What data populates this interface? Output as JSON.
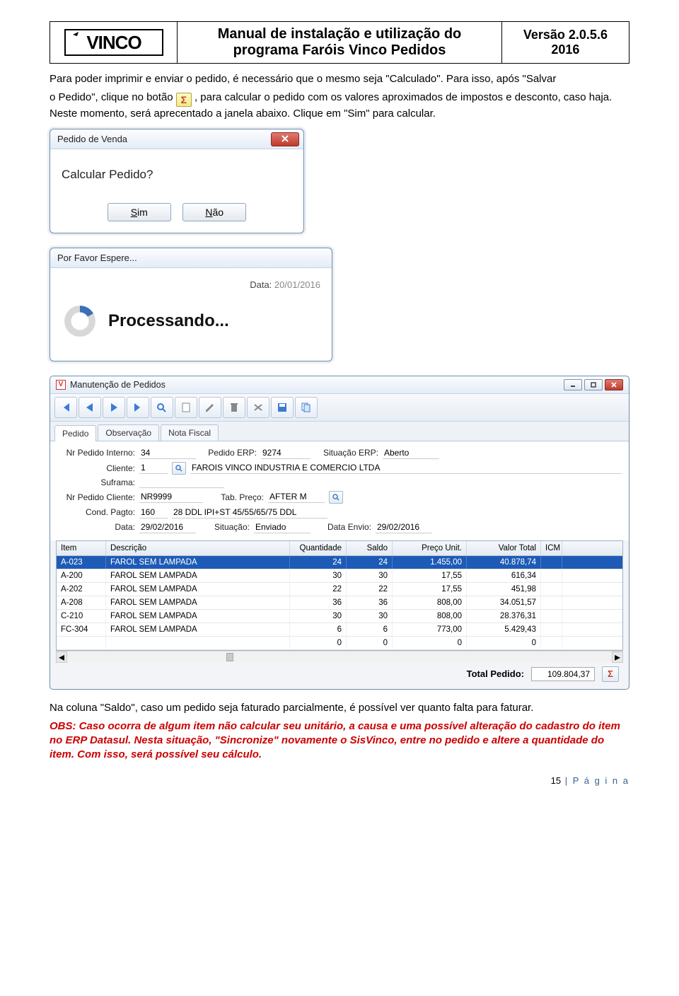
{
  "header": {
    "logo": "VINCO",
    "title_line1": "Manual de instalação e utilização do",
    "title_line2": "programa Faróis Vinco Pedidos",
    "version_line1": "Versão 2.0.5.6",
    "version_line2": "2016"
  },
  "para1": "Para poder imprimir e enviar o pedido, é necessário que o mesmo seja \"Calculado\". Para isso, após \"Salvar",
  "para2_prefix": "o Pedido\", clique no botão ",
  "para2_suffix": ", para calcular o pedido com os valores aproximados de impostos e desconto, caso haja. Neste momento, será aprecentado a janela abaixo. Clique em \"Sim\" para calcular.",
  "dlg1": {
    "title": "Pedido de Venda",
    "question": "Calcular Pedido?",
    "yes_u": "S",
    "yes_rest": "im",
    "no_u": "N",
    "no_rest": "ão"
  },
  "dlg2": {
    "title": "Por Favor Espere...",
    "data_label": "Data:",
    "data_value": "20/01/2016",
    "processing": "Processando..."
  },
  "app": {
    "title": "Manutenção de Pedidos",
    "tabs": [
      "Pedido",
      "Observação",
      "Nota Fiscal"
    ],
    "fields": {
      "nr_int_label": "Nr Pedido Interno:",
      "nr_int": "34",
      "erp_label": "Pedido ERP:",
      "erp": "9274",
      "sit_erp_label": "Situação ERP:",
      "sit_erp": "Aberto",
      "cliente_label": "Cliente:",
      "cliente_cod": "1",
      "cliente_nome": "FAROIS VINCO INDUSTRIA E COMERCIO LTDA",
      "suframa_label": "Suframa:",
      "nr_cli_label": "Nr Pedido Cliente:",
      "nr_cli": "NR9999",
      "tab_preco_label": "Tab. Preço:",
      "tab_preco": "AFTER M",
      "cond_label": "Cond. Pagto:",
      "cond_cod": "160",
      "cond_desc": "28 DDL IPI+ST 45/55/65/75 DDL",
      "data_label": "Data:",
      "data": "29/02/2016",
      "sit_label": "Situação:",
      "sit": "Enviado",
      "env_label": "Data Envio:",
      "env": "29/02/2016"
    },
    "grid": {
      "cols": [
        "Item",
        "Descrição",
        "Quantidade",
        "Saldo",
        "Preço Unit.",
        "Valor Total",
        "ICM"
      ],
      "rows": [
        {
          "item": "A-023",
          "desc": "FAROL SEM LAMPADA",
          "q": "24",
          "s": "24",
          "pu": "1.455,00",
          "vt": "40.878,74",
          "sel": true
        },
        {
          "item": "A-200",
          "desc": "FAROL SEM LAMPADA",
          "q": "30",
          "s": "30",
          "pu": "17,55",
          "vt": "616,34"
        },
        {
          "item": "A-202",
          "desc": "FAROL SEM LAMPADA",
          "q": "22",
          "s": "22",
          "pu": "17,55",
          "vt": "451,98"
        },
        {
          "item": "A-208",
          "desc": "FAROL SEM LAMPADA",
          "q": "36",
          "s": "36",
          "pu": "808,00",
          "vt": "34.051,57"
        },
        {
          "item": "C-210",
          "desc": "FAROL SEM LAMPADA",
          "q": "30",
          "s": "30",
          "pu": "808,00",
          "vt": "28.376,31"
        },
        {
          "item": "FC-304",
          "desc": "FAROL SEM LAMPADA",
          "q": "6",
          "s": "6",
          "pu": "773,00",
          "vt": "5.429,43"
        },
        {
          "item": "",
          "desc": "",
          "q": "0",
          "s": "0",
          "pu": "0",
          "vt": "0"
        }
      ]
    },
    "total_label": "Total Pedido:",
    "total_value": "109.804,37"
  },
  "para3": "Na coluna \"Saldo\", caso um pedido seja faturado parcialmente, é possível ver quanto falta para faturar.",
  "para4": "OBS: Caso ocorra de algum item não calcular seu unitário, a causa e uma possível alteração do cadastro do item no ERP Datasul. Nesta situação, \"Sincronize\" novamente o SisVinco, entre no pedido e altere a quantidade do item. Com isso, será possível seu cálculo.",
  "footer": {
    "num": "15",
    "text": "P á g i n a"
  }
}
